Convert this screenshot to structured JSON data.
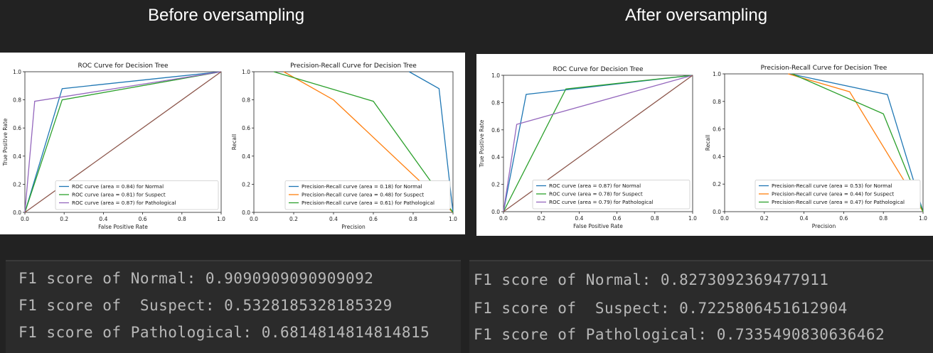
{
  "headings": {
    "before": "Before oversampling",
    "after": "After oversampling"
  },
  "colors": {
    "blue": "#1f77b4",
    "orange": "#ff7f0e",
    "green": "#2ca02c",
    "purple": "#9467bd",
    "brown": "#8c564b"
  },
  "chart_data": [
    {
      "id": "before_roc",
      "type": "line",
      "title": "ROC Curve for Decision Tree",
      "xlabel": "False Positive Rate",
      "ylabel": "True Positive Rate",
      "xlim": [
        0,
        1
      ],
      "ylim": [
        0,
        1
      ],
      "xticks": [
        "0.0",
        "0.2",
        "0.4",
        "0.6",
        "0.8",
        "1.0"
      ],
      "yticks": [
        "0.0",
        "0.2",
        "0.4",
        "0.6",
        "0.8",
        "1.0"
      ],
      "legend_position": "bottom-right",
      "series": [
        {
          "name": "ROC curve (area = 0.84) for Normal",
          "color": "#1f77b4",
          "x": [
            0,
            0.19,
            1
          ],
          "y": [
            0,
            0.88,
            1
          ],
          "legend": true
        },
        {
          "name": "ROC curve (area = 0.81) for  Suspect",
          "color": "#2ca02c",
          "x": [
            0,
            0.19,
            1
          ],
          "y": [
            0,
            0.8,
            1
          ],
          "legend": true
        },
        {
          "name": "ROC curve (area = 0.87) for Pathological",
          "color": "#9467bd",
          "x": [
            0,
            0.05,
            1
          ],
          "y": [
            0,
            0.79,
            1
          ],
          "legend": true
        },
        {
          "name": "",
          "color": "#8c564b",
          "x": [
            0,
            1
          ],
          "y": [
            0,
            1
          ],
          "legend": false
        }
      ]
    },
    {
      "id": "before_pr",
      "type": "line",
      "title": "Precision-Recall Curve for Decision Tree",
      "xlabel": "Precision",
      "ylabel": "Recall",
      "xlim": [
        0,
        1
      ],
      "ylim": [
        0,
        1
      ],
      "xticks": [
        "0.0",
        "0.2",
        "0.4",
        "0.6",
        "0.8",
        "1.0"
      ],
      "yticks": [
        "0.0",
        "0.2",
        "0.4",
        "0.6",
        "0.8",
        "1.0"
      ],
      "legend_position": "bottom-right",
      "series": [
        {
          "name": "Precision-Recall curve (area = 0.18) for Normal",
          "color": "#1f77b4",
          "x": [
            0.78,
            0.93,
            1
          ],
          "y": [
            1.0,
            0.88,
            0
          ],
          "legend": true
        },
        {
          "name": "Precision-Recall curve (area = 0.48) for  Suspect",
          "color": "#ff7f0e",
          "x": [
            0.15,
            0.4,
            1
          ],
          "y": [
            1.0,
            0.8,
            0
          ],
          "legend": true
        },
        {
          "name": "Precision-Recall curve (area = 0.61) for Pathological",
          "color": "#2ca02c",
          "x": [
            0.1,
            0.6,
            1
          ],
          "y": [
            1.0,
            0.79,
            0
          ],
          "legend": true
        }
      ]
    },
    {
      "id": "after_roc",
      "type": "line",
      "title": "ROC Curve for Decision Tree",
      "xlabel": "False Positive Rate",
      "ylabel": "True Positive Rate",
      "xlim": [
        0,
        1
      ],
      "ylim": [
        0,
        1
      ],
      "xticks": [
        "0.0",
        "0.2",
        "0.4",
        "0.6",
        "0.8",
        "1.0"
      ],
      "yticks": [
        "0.0",
        "0.2",
        "0.4",
        "0.6",
        "0.8",
        "1.0"
      ],
      "legend_position": "bottom-right",
      "series": [
        {
          "name": "ROC curve (area = 0.87) for Normal",
          "color": "#1f77b4",
          "x": [
            0,
            0.12,
            1
          ],
          "y": [
            0,
            0.86,
            1
          ],
          "legend": true
        },
        {
          "name": "ROC curve (area = 0.78) for  Suspect",
          "color": "#2ca02c",
          "x": [
            0,
            0.33,
            1
          ],
          "y": [
            0,
            0.9,
            1
          ],
          "legend": true
        },
        {
          "name": "ROC curve (area = 0.79) for Pathological",
          "color": "#9467bd",
          "x": [
            0,
            0.07,
            1
          ],
          "y": [
            0,
            0.64,
            1
          ],
          "legend": true
        },
        {
          "name": "",
          "color": "#8c564b",
          "x": [
            0,
            1
          ],
          "y": [
            0,
            1
          ],
          "legend": false
        }
      ]
    },
    {
      "id": "after_pr",
      "type": "line",
      "title": "Precision-Recall Curve for Decision Tree",
      "xlabel": "Precision",
      "ylabel": "Recall",
      "xlim": [
        0,
        1
      ],
      "ylim": [
        0,
        1
      ],
      "xticks": [
        "0.0",
        "0.2",
        "0.4",
        "0.6",
        "0.8",
        "1.0"
      ],
      "yticks": [
        "0.0",
        "0.2",
        "0.4",
        "0.6",
        "0.8",
        "1.0"
      ],
      "legend_position": "bottom-right",
      "series": [
        {
          "name": "Precision-Recall curve (area = 0.53) for Normal",
          "color": "#1f77b4",
          "x": [
            0.33,
            0.82,
            1
          ],
          "y": [
            1.0,
            0.85,
            0
          ],
          "legend": true
        },
        {
          "name": "Precision-Recall curve (area = 0.44) for  Suspect",
          "color": "#ff7f0e",
          "x": [
            0.32,
            0.63,
            1
          ],
          "y": [
            1.0,
            0.87,
            0
          ],
          "legend": true
        },
        {
          "name": "Precision-Recall curve (area = 0.47) for Pathological",
          "color": "#2ca02c",
          "x": [
            0.34,
            0.8,
            1
          ],
          "y": [
            1.0,
            0.71,
            0
          ],
          "legend": true
        }
      ]
    }
  ],
  "console_before": {
    "lines": [
      {
        "label": "F1 score of Normal: ",
        "value": "0.9090909090909092"
      },
      {
        "label": "F1 score of  Suspect: ",
        "value": "0.5328185328185329"
      },
      {
        "label": "F1 score of Pathological: ",
        "value": "0.6814814814814815"
      }
    ]
  },
  "console_after": {
    "lines": [
      {
        "label": "F1 score of Normal: ",
        "value": "0.8273092369477911"
      },
      {
        "label": "F1 score of  Suspect: ",
        "value": "0.7225806451612904"
      },
      {
        "label": "F1 score of Pathological: ",
        "value": "0.7335490830636462"
      }
    ]
  }
}
